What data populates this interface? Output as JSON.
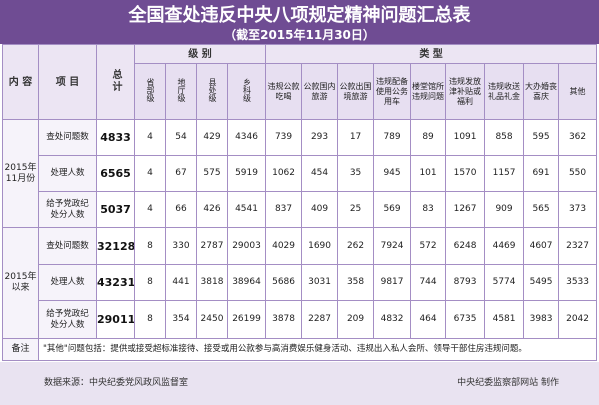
{
  "title": "全国查处违反中央八项规定精神问题汇总表",
  "subtitle": "（截至2015年11月30日）",
  "headers": {
    "content": "内 容",
    "item": "项 目",
    "total": "总计",
    "level_group": "级 别",
    "type_group": "类 型",
    "levels": [
      "省部级",
      "地厅级",
      "县处级",
      "乡科级"
    ],
    "types": [
      "违规公款吃喝",
      "公款国内旅游",
      "公款出国境旅游",
      "违规配备使用公务用车",
      "楼堂馆所违规问题",
      "违规发放津补贴或福利",
      "违规收送礼品礼金",
      "大办婚丧喜庆",
      "其他"
    ]
  },
  "groups": [
    {
      "period": "2015年11月份",
      "rows": [
        {
          "label": "查处问题数",
          "total": "4833",
          "levels": [
            "4",
            "54",
            "429",
            "4346"
          ],
          "types": [
            "739",
            "293",
            "17",
            "789",
            "89",
            "1091",
            "858",
            "595",
            "362"
          ]
        },
        {
          "label": "处理人数",
          "total": "6565",
          "levels": [
            "4",
            "67",
            "575",
            "5919"
          ],
          "types": [
            "1062",
            "454",
            "35",
            "945",
            "101",
            "1570",
            "1157",
            "691",
            "550"
          ]
        },
        {
          "label": "给予党政纪处分人数",
          "total": "5037",
          "levels": [
            "4",
            "66",
            "426",
            "4541"
          ],
          "types": [
            "837",
            "409",
            "25",
            "569",
            "83",
            "1267",
            "909",
            "565",
            "373"
          ]
        }
      ]
    },
    {
      "period": "2015年以来",
      "rows": [
        {
          "label": "查处问题数",
          "total": "32128",
          "levels": [
            "8",
            "330",
            "2787",
            "29003"
          ],
          "types": [
            "4029",
            "1690",
            "262",
            "7924",
            "572",
            "6248",
            "4469",
            "4607",
            "2327"
          ]
        },
        {
          "label": "处理人数",
          "total": "43231",
          "levels": [
            "8",
            "441",
            "3818",
            "38964"
          ],
          "types": [
            "5686",
            "3031",
            "358",
            "9817",
            "744",
            "8793",
            "5774",
            "5495",
            "3533"
          ]
        },
        {
          "label": "给予党政纪处分人数",
          "total": "29011",
          "levels": [
            "8",
            "354",
            "2450",
            "26199"
          ],
          "types": [
            "3878",
            "2287",
            "209",
            "4832",
            "464",
            "6735",
            "4581",
            "3983",
            "2042"
          ]
        }
      ]
    }
  ],
  "note_label": "备注",
  "note": "\"其他\"问题包括：提供或接受超标准接待、接受或用公款参与高消费娱乐健身活动、违规出入私人会所、领导干部住房违规问题。",
  "source": "数据来源：中央纪委党风政风监督室",
  "maker": "中央纪委监察部网站 制作"
}
